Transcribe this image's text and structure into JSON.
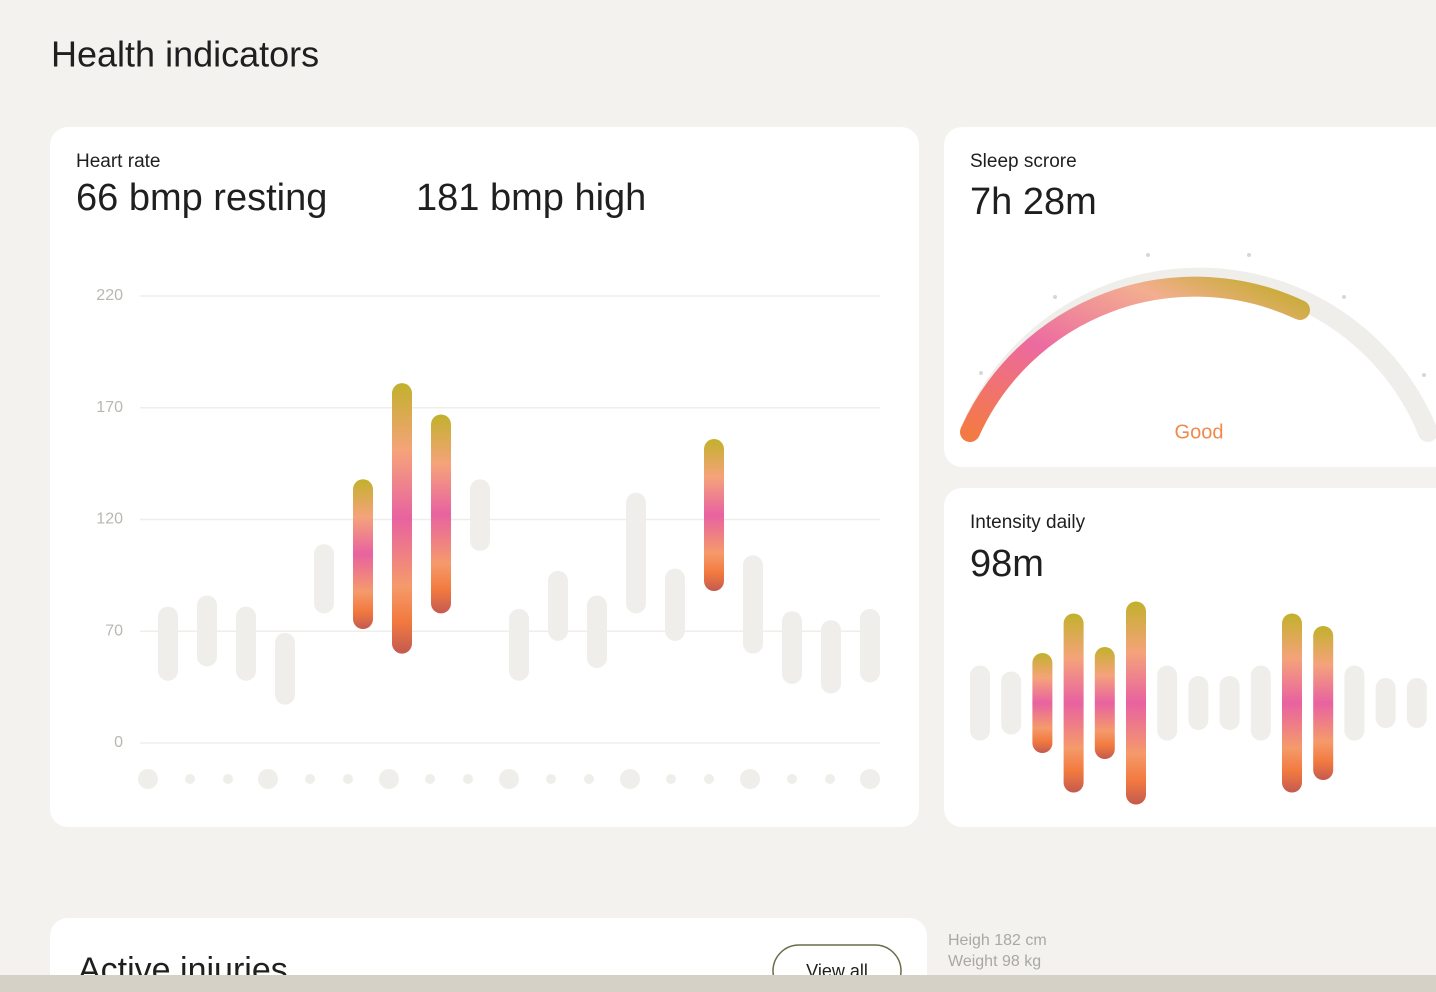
{
  "header": {
    "title": "Health indicators"
  },
  "heart_rate": {
    "label": "Heart rate",
    "resting": "66 bmp resting",
    "high": "181 bmp high"
  },
  "sleep": {
    "label": "Sleep scrore",
    "duration": "7h 28m",
    "rating": "Good"
  },
  "intensity": {
    "label": "Intensity daily",
    "total": "98m"
  },
  "injuries": {
    "title": "Active injuries",
    "action": "View all"
  },
  "profile": {
    "height": "Heigh 182 cm",
    "weight": "Weight 98 kg"
  },
  "chart_data": [
    {
      "type": "range-bar",
      "low": [
        39,
        48,
        39,
        24,
        78,
        71,
        56,
        78,
        106,
        39,
        64,
        47,
        78,
        64,
        88,
        56,
        37,
        31,
        38
      ],
      "high": [
        81,
        86,
        81,
        69,
        109,
        138,
        181,
        167,
        138,
        80,
        97,
        86,
        132,
        98,
        156,
        104,
        79,
        75,
        80
      ],
      "highlight": [
        false,
        false,
        false,
        false,
        false,
        true,
        true,
        true,
        false,
        false,
        false,
        false,
        false,
        false,
        true,
        false,
        false,
        false,
        false
      ],
      "color": "#efeeea",
      "ylim": [
        0,
        220
      ],
      "yticks": [
        0,
        70,
        120,
        170,
        220
      ],
      "grid": true
    },
    {
      "type": "bar",
      "values": [
        75,
        63,
        100,
        179,
        112,
        203,
        75,
        54,
        54,
        75,
        179,
        154,
        75,
        50,
        50
      ],
      "highlight": [
        false,
        false,
        true,
        true,
        true,
        true,
        false,
        false,
        false,
        false,
        true,
        true,
        false,
        false,
        false
      ],
      "color": "#efeeea",
      "ylim": [
        0,
        220
      ]
    }
  ]
}
